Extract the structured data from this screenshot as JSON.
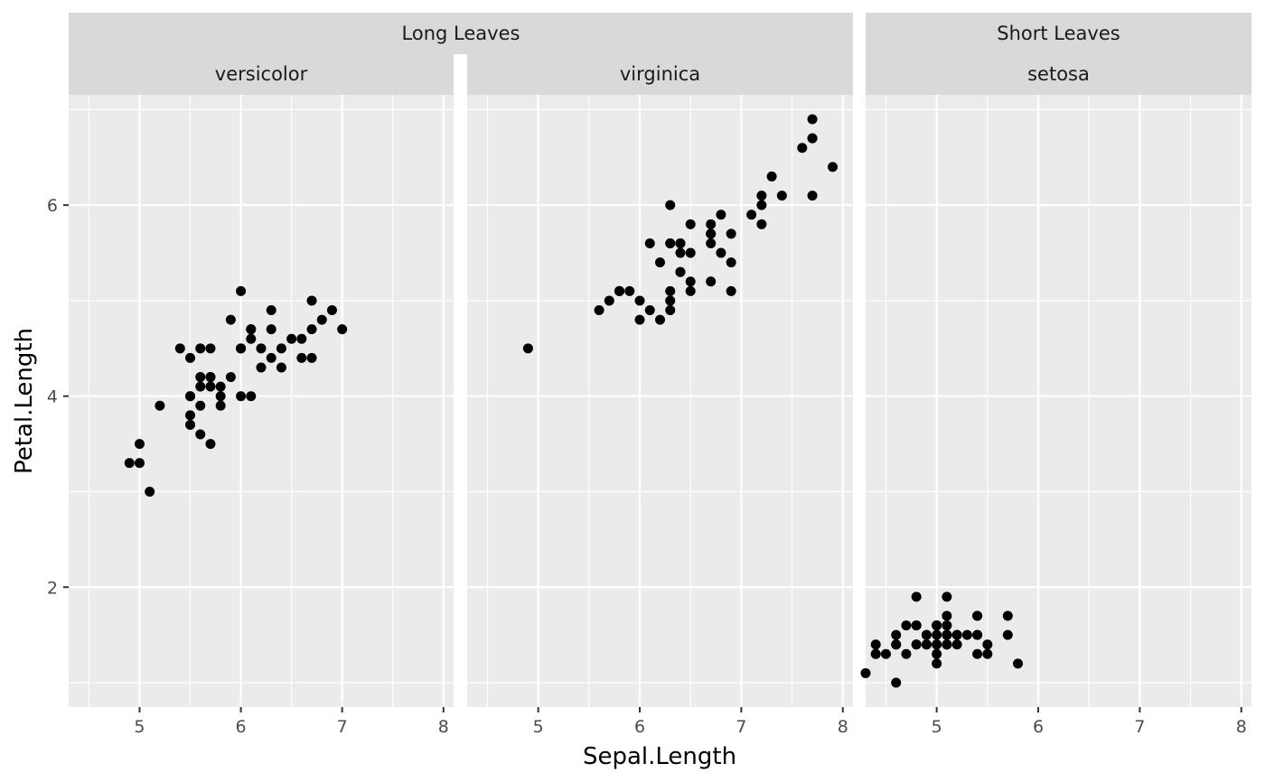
{
  "chart_data": {
    "type": "scatter",
    "xlabel": "Sepal.Length",
    "ylabel": "Petal.Length",
    "xlim": [
      4.3,
      8.1
    ],
    "ylim": [
      0.745,
      7.155
    ],
    "x_ticks": [
      5,
      6,
      7,
      8
    ],
    "y_ticks": [
      2,
      4,
      6
    ],
    "grid": true,
    "point_color": "#000000",
    "panel_background": "#EBEBEB",
    "strip_background": "#D9D9D9",
    "groups": [
      {
        "label": "Long Leaves",
        "panels": [
          {
            "label": "versicolor",
            "points": [
              [
                7.0,
                4.7
              ],
              [
                6.4,
                4.5
              ],
              [
                6.9,
                4.9
              ],
              [
                5.5,
                4.0
              ],
              [
                6.5,
                4.6
              ],
              [
                5.7,
                4.5
              ],
              [
                6.3,
                4.7
              ],
              [
                4.9,
                3.3
              ],
              [
                6.6,
                4.6
              ],
              [
                5.2,
                3.9
              ],
              [
                5.0,
                3.5
              ],
              [
                5.9,
                4.2
              ],
              [
                6.0,
                4.0
              ],
              [
                6.1,
                4.7
              ],
              [
                5.6,
                3.6
              ],
              [
                6.7,
                4.4
              ],
              [
                5.6,
                4.5
              ],
              [
                5.8,
                4.1
              ],
              [
                6.2,
                4.5
              ],
              [
                5.6,
                3.9
              ],
              [
                5.9,
                4.8
              ],
              [
                6.1,
                4.0
              ],
              [
                6.3,
                4.9
              ],
              [
                6.1,
                4.7
              ],
              [
                6.4,
                4.3
              ],
              [
                6.6,
                4.4
              ],
              [
                6.8,
                4.8
              ],
              [
                6.7,
                5.0
              ],
              [
                6.0,
                4.5
              ],
              [
                5.7,
                3.5
              ],
              [
                5.5,
                3.8
              ],
              [
                5.5,
                3.7
              ],
              [
                5.8,
                3.9
              ],
              [
                6.0,
                5.1
              ],
              [
                5.4,
                4.5
              ],
              [
                6.0,
                4.5
              ],
              [
                6.7,
                4.7
              ],
              [
                6.3,
                4.4
              ],
              [
                5.6,
                4.1
              ],
              [
                5.5,
                4.0
              ],
              [
                5.5,
                4.4
              ],
              [
                6.1,
                4.6
              ],
              [
                5.8,
                4.0
              ],
              [
                5.0,
                3.3
              ],
              [
                5.6,
                4.2
              ],
              [
                5.7,
                4.2
              ],
              [
                5.7,
                4.2
              ],
              [
                6.2,
                4.3
              ],
              [
                5.1,
                3.0
              ],
              [
                5.7,
                4.1
              ]
            ]
          },
          {
            "label": "virginica",
            "points": [
              [
                6.3,
                6.0
              ],
              [
                5.8,
                5.1
              ],
              [
                7.1,
                5.9
              ],
              [
                6.3,
                5.6
              ],
              [
                6.5,
                5.8
              ],
              [
                7.6,
                6.6
              ],
              [
                4.9,
                4.5
              ],
              [
                7.3,
                6.3
              ],
              [
                6.7,
                5.8
              ],
              [
                7.2,
                6.1
              ],
              [
                6.5,
                5.1
              ],
              [
                6.4,
                5.3
              ],
              [
                6.8,
                5.5
              ],
              [
                5.7,
                5.0
              ],
              [
                5.8,
                5.1
              ],
              [
                6.4,
                5.3
              ],
              [
                6.5,
                5.5
              ],
              [
                7.7,
                6.7
              ],
              [
                7.7,
                6.9
              ],
              [
                6.0,
                5.0
              ],
              [
                6.9,
                5.7
              ],
              [
                5.6,
                4.9
              ],
              [
                7.7,
                6.7
              ],
              [
                6.3,
                4.9
              ],
              [
                6.7,
                5.7
              ],
              [
                7.2,
                6.0
              ],
              [
                6.2,
                4.8
              ],
              [
                6.1,
                4.9
              ],
              [
                6.4,
                5.6
              ],
              [
                7.2,
                5.8
              ],
              [
                7.4,
                6.1
              ],
              [
                7.9,
                6.4
              ],
              [
                6.4,
                5.6
              ],
              [
                6.3,
                5.1
              ],
              [
                6.1,
                5.6
              ],
              [
                7.7,
                6.1
              ],
              [
                6.3,
                5.6
              ],
              [
                6.4,
                5.5
              ],
              [
                6.0,
                4.8
              ],
              [
                6.9,
                5.4
              ],
              [
                6.7,
                5.6
              ],
              [
                6.9,
                5.1
              ],
              [
                5.8,
                5.1
              ],
              [
                6.8,
                5.9
              ],
              [
                6.7,
                5.7
              ],
              [
                6.7,
                5.2
              ],
              [
                6.3,
                5.0
              ],
              [
                6.5,
                5.2
              ],
              [
                6.2,
                5.4
              ],
              [
                5.9,
                5.1
              ]
            ]
          }
        ]
      },
      {
        "label": "Short Leaves",
        "panels": [
          {
            "label": "setosa",
            "points": [
              [
                5.1,
                1.4
              ],
              [
                4.9,
                1.4
              ],
              [
                4.7,
                1.3
              ],
              [
                4.6,
                1.5
              ],
              [
                5.0,
                1.4
              ],
              [
                5.4,
                1.7
              ],
              [
                4.6,
                1.4
              ],
              [
                5.0,
                1.5
              ],
              [
                4.4,
                1.4
              ],
              [
                4.9,
                1.5
              ],
              [
                5.4,
                1.5
              ],
              [
                4.8,
                1.6
              ],
              [
                4.8,
                1.4
              ],
              [
                4.3,
                1.1
              ],
              [
                5.8,
                1.2
              ],
              [
                5.7,
                1.5
              ],
              [
                5.4,
                1.3
              ],
              [
                5.1,
                1.4
              ],
              [
                5.7,
                1.7
              ],
              [
                5.1,
                1.5
              ],
              [
                5.4,
                1.7
              ],
              [
                5.1,
                1.5
              ],
              [
                4.6,
                1.0
              ],
              [
                5.1,
                1.7
              ],
              [
                4.8,
                1.9
              ],
              [
                5.0,
                1.6
              ],
              [
                5.0,
                1.6
              ],
              [
                5.2,
                1.5
              ],
              [
                5.2,
                1.4
              ],
              [
                4.7,
                1.6
              ],
              [
                4.8,
                1.6
              ],
              [
                5.4,
                1.5
              ],
              [
                5.2,
                1.5
              ],
              [
                5.5,
                1.4
              ],
              [
                4.9,
                1.5
              ],
              [
                5.0,
                1.2
              ],
              [
                5.5,
                1.3
              ],
              [
                4.9,
                1.4
              ],
              [
                4.4,
                1.3
              ],
              [
                5.1,
                1.5
              ],
              [
                5.0,
                1.3
              ],
              [
                4.5,
                1.3
              ],
              [
                4.4,
                1.3
              ],
              [
                5.0,
                1.6
              ],
              [
                5.1,
                1.9
              ],
              [
                4.8,
                1.4
              ],
              [
                5.1,
                1.6
              ],
              [
                4.6,
                1.4
              ],
              [
                5.3,
                1.5
              ],
              [
                5.0,
                1.4
              ]
            ]
          }
        ]
      }
    ]
  }
}
